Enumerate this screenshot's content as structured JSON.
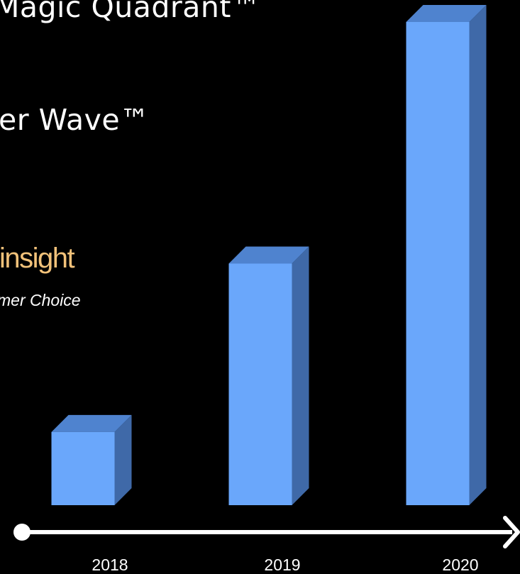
{
  "texts": {
    "magic_quadrant": "Magic Quadrant™",
    "wave": "er Wave™",
    "insight": "insight",
    "customer_choice": "mer Choice"
  },
  "colors": {
    "background": "#000000",
    "text": "#ffffff",
    "insight": "#f2c27a",
    "bar_front": "#6aa7fb",
    "bar_top": "#4f83cf",
    "bar_side": "#3f69a8",
    "axis": "#ffffff"
  },
  "chart_data": {
    "type": "bar",
    "categories": [
      "2018",
      "2019",
      "2020"
    ],
    "values": [
      1,
      3.3,
      6.6
    ],
    "ylim": [
      0,
      6.6
    ],
    "style": "3d",
    "axis": "arrow"
  }
}
